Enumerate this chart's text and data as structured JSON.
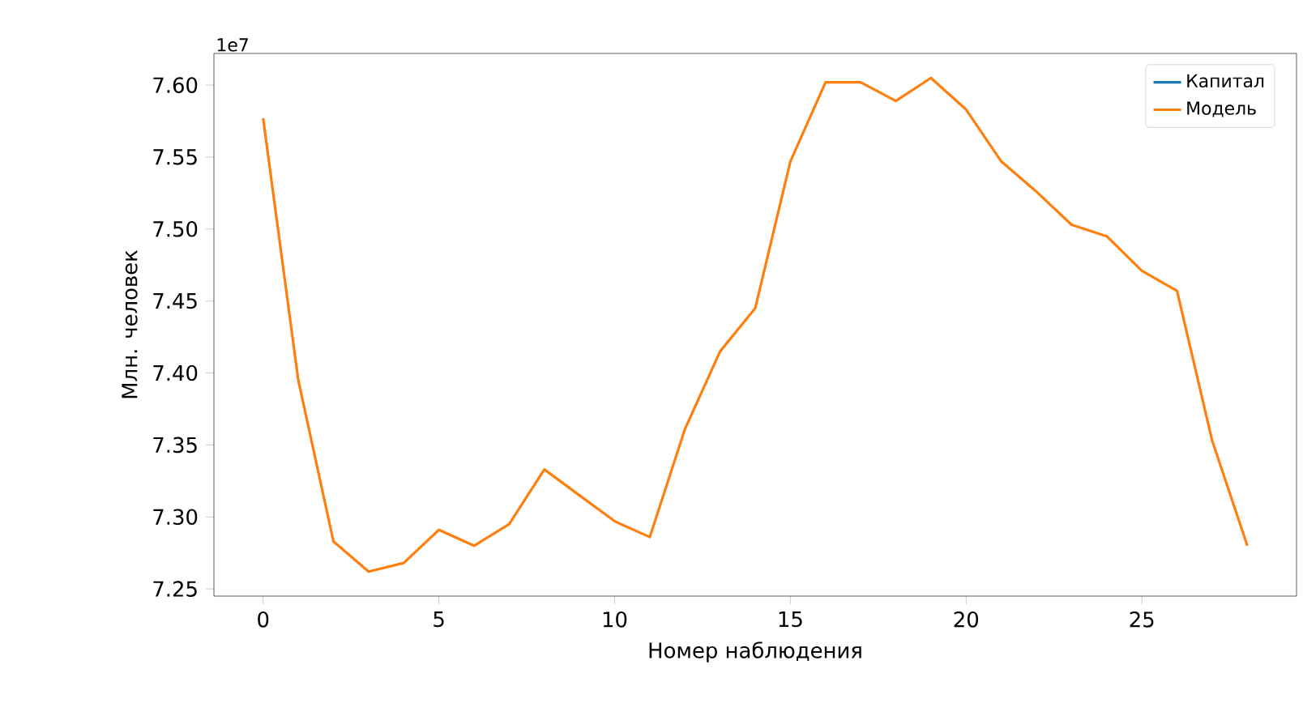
{
  "chart_data": {
    "type": "line",
    "xlabel": "Номер наблюдения",
    "ylabel": "Млн. человек",
    "annotations": [
      "1e7"
    ],
    "x": [
      0,
      1,
      2,
      3,
      4,
      5,
      6,
      7,
      8,
      9,
      10,
      11,
      12,
      13,
      14,
      15,
      16,
      17,
      18,
      19,
      20,
      21,
      22,
      23,
      24,
      25,
      26,
      27,
      28
    ],
    "series": [
      {
        "name": "Капитал",
        "color": "#1f77b4",
        "values": [
          null,
          null,
          null,
          null,
          null,
          null,
          null,
          null,
          null,
          null,
          null,
          null,
          null,
          null,
          null,
          null,
          null,
          null,
          null,
          null,
          null,
          null,
          null,
          null,
          null,
          null,
          null,
          null,
          null
        ]
      },
      {
        "name": "Модель",
        "color": "#ff7f0e",
        "values": [
          7.577,
          7.395,
          7.283,
          7.262,
          7.268,
          7.291,
          7.28,
          7.295,
          7.333,
          7.315,
          7.297,
          7.286,
          7.361,
          7.415,
          7.445,
          7.547,
          7.602,
          7.602,
          7.589,
          7.605,
          7.583,
          7.547,
          7.526,
          7.503,
          7.495,
          7.471,
          7.457,
          7.353,
          7.28
        ]
      }
    ],
    "xlim": [
      -1.4,
      29.4
    ],
    "ylim": [
      7.245,
      7.622
    ],
    "xticks": [
      0,
      5,
      10,
      15,
      20,
      25
    ],
    "yticks": [
      {
        "value": 7.25,
        "label": "7.25"
      },
      {
        "value": 7.3,
        "label": "7.30"
      },
      {
        "value": 7.35,
        "label": "7.35"
      },
      {
        "value": 7.4,
        "label": "7.40"
      },
      {
        "value": 7.45,
        "label": "7.45"
      },
      {
        "value": 7.5,
        "label": "7.50"
      },
      {
        "value": 7.55,
        "label": "7.55"
      },
      {
        "value": 7.6,
        "label": "7.60"
      }
    ],
    "grid": false,
    "legend": "top right",
    "marker": "none",
    "line_style": "solid"
  }
}
